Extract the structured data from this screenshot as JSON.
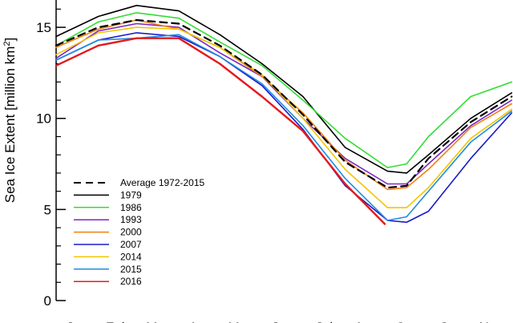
{
  "chart_data": {
    "type": "line",
    "ylabel": "Sea Ice Extent [million km",
    "ylabel_sup": "2",
    "ylabel_close": "]",
    "ylim": [
      0,
      16.5
    ],
    "y_ticks": [
      0,
      5,
      10,
      15
    ],
    "x_unit": "day of year",
    "x_month_labels": [
      "Jan",
      "Feb",
      "Mar",
      "Apr",
      "May",
      "Jun",
      "Jul",
      "Aug",
      "Sep",
      "Oct",
      "Nov"
    ],
    "x_month_starts": [
      1,
      32,
      60,
      91,
      121,
      152,
      182,
      213,
      244,
      274,
      305
    ],
    "legend_position": "left-bottom",
    "series": [
      {
        "name": "Average 1972-2015",
        "color": "#000000",
        "dashed": true,
        "x": [
          1,
          32,
          60,
          91,
          121,
          152,
          182,
          213,
          244,
          258,
          274,
          305,
          335
        ],
        "y": [
          14.0,
          15.0,
          15.4,
          15.2,
          14.0,
          12.4,
          10.2,
          7.6,
          6.2,
          6.3,
          7.8,
          9.8,
          11.2
        ]
      },
      {
        "name": "1979",
        "color": "#000000",
        "dashed": false,
        "x": [
          1,
          32,
          60,
          91,
          121,
          152,
          182,
          213,
          244,
          258,
          274,
          305,
          335
        ],
        "y": [
          14.5,
          15.6,
          16.2,
          15.9,
          14.6,
          13.0,
          11.2,
          8.4,
          7.1,
          7.0,
          8.0,
          10.0,
          11.4
        ]
      },
      {
        "name": "1986",
        "color": "#33dd33",
        "dashed": false,
        "x": [
          1,
          32,
          60,
          91,
          121,
          152,
          182,
          213,
          244,
          258,
          274,
          305,
          335
        ],
        "y": [
          14.0,
          15.3,
          15.8,
          15.5,
          14.2,
          12.9,
          11.0,
          8.9,
          7.3,
          7.5,
          9.0,
          11.2,
          12.0
        ]
      },
      {
        "name": "1993",
        "color": "#7b28c4",
        "dashed": false,
        "x": [
          1,
          32,
          60,
          91,
          121,
          152,
          182,
          213,
          244,
          258,
          274,
          305,
          335
        ],
        "y": [
          13.3,
          14.8,
          15.2,
          15.0,
          13.6,
          12.3,
          10.0,
          7.8,
          6.4,
          6.4,
          7.5,
          9.6,
          11.0
        ]
      },
      {
        "name": "2000",
        "color": "#f08010",
        "dashed": false,
        "x": [
          1,
          32,
          60,
          91,
          121,
          152,
          182,
          213,
          244,
          258,
          274,
          305,
          335
        ],
        "y": [
          13.9,
          14.9,
          15.4,
          14.9,
          13.9,
          12.3,
          10.3,
          7.7,
          6.1,
          6.2,
          7.2,
          9.5,
          10.8
        ]
      },
      {
        "name": "2007",
        "color": "#1a1ac8",
        "dashed": false,
        "x": [
          1,
          32,
          60,
          91,
          121,
          152,
          182,
          213,
          244,
          258,
          274,
          305,
          335
        ],
        "y": [
          13.2,
          14.3,
          14.7,
          14.5,
          13.4,
          11.8,
          9.4,
          6.3,
          4.4,
          4.3,
          4.9,
          7.8,
          10.3
        ]
      },
      {
        "name": "2014",
        "color": "#f2c500",
        "dashed": false,
        "x": [
          1,
          32,
          60,
          91,
          121,
          152,
          182,
          213,
          244,
          258,
          274,
          305,
          335
        ],
        "y": [
          13.5,
          14.7,
          15.0,
          14.9,
          13.9,
          12.4,
          10.0,
          7.2,
          5.1,
          5.1,
          6.2,
          8.9,
          10.5
        ]
      },
      {
        "name": "2015",
        "color": "#1e8ce0",
        "dashed": false,
        "x": [
          1,
          32,
          60,
          91,
          121,
          152,
          182,
          213,
          244,
          258,
          274,
          305,
          335
        ],
        "y": [
          13.2,
          14.3,
          14.4,
          14.6,
          13.4,
          11.9,
          9.6,
          6.7,
          4.4,
          4.6,
          6.0,
          8.7,
          10.4
        ]
      },
      {
        "name": "2016",
        "color": "#e41a1c",
        "dashed": false,
        "x": [
          1,
          32,
          60,
          91,
          121,
          152,
          182,
          213,
          242
        ],
        "y": [
          12.9,
          14.0,
          14.4,
          14.4,
          13.0,
          11.2,
          9.3,
          6.4,
          4.2
        ]
      }
    ]
  }
}
